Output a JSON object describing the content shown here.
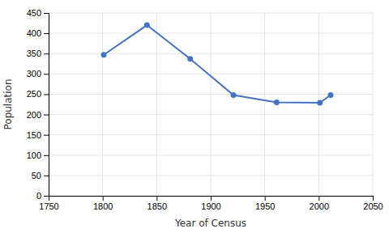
{
  "chart_data": {
    "type": "line",
    "x": [
      1801,
      1841,
      1881,
      1921,
      1961,
      2001,
      2011
    ],
    "values": [
      347,
      420,
      337,
      248,
      230,
      229,
      248
    ],
    "color": "#4472c4",
    "marker": "circle",
    "xlabel": "Year of Census",
    "ylabel": "Population",
    "xlim": [
      1750,
      2050
    ],
    "ylim": [
      0,
      450
    ],
    "xticks": [
      1750,
      1800,
      1850,
      1900,
      1950,
      2000,
      2050
    ],
    "yticks": [
      0,
      50,
      100,
      150,
      200,
      250,
      300,
      350,
      400,
      450
    ],
    "grid": true
  }
}
